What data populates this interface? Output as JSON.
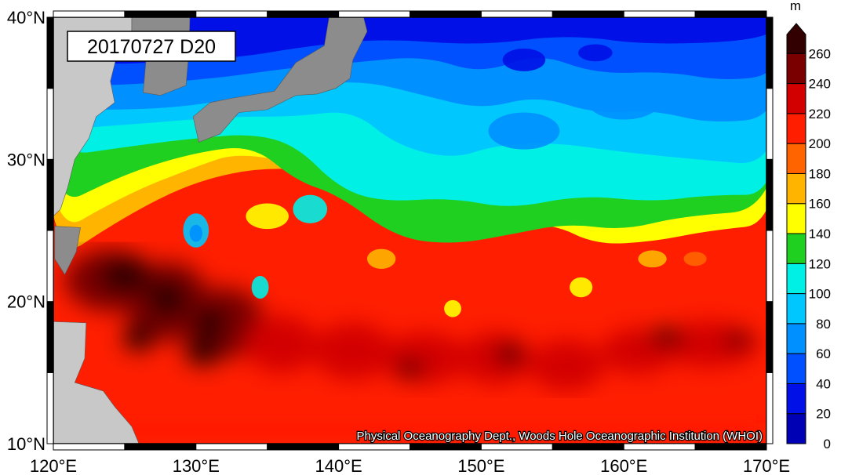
{
  "map": {
    "title": "20170727 D20",
    "credit": "Physical Oceanography Dept., Woods Hole Oceanographic Institution (WHOI)",
    "variable": "D20",
    "date": "20170727",
    "units": "m",
    "lon_range": [
      120,
      170
    ],
    "lat_range": [
      10,
      40
    ],
    "lon_ticks": [
      "120°E",
      "130°E",
      "140°E",
      "150°E",
      "160°E",
      "170°E"
    ],
    "lat_ticks": [
      "10°N",
      "20°N",
      "30°N",
      "40°N"
    ],
    "land_color": "#8c8c8c",
    "continent_color": "#c8c8c8"
  },
  "colorbar": {
    "unit_label": "m",
    "levels": [
      0,
      20,
      40,
      60,
      80,
      100,
      120,
      140,
      160,
      180,
      200,
      220,
      240,
      260
    ],
    "labels": [
      "0",
      "20",
      "40",
      "60",
      "80",
      "100",
      "120",
      "140",
      "160",
      "180",
      "200",
      "220",
      "240",
      "260"
    ],
    "colors": [
      "#0000b4",
      "#0010e6",
      "#0050ff",
      "#0090ff",
      "#00c8ff",
      "#00f0e6",
      "#20d020",
      "#ffff00",
      "#ffb400",
      "#ff6400",
      "#ff1e00",
      "#d20000",
      "#7a0000",
      "#320000"
    ],
    "extend": "max"
  }
}
